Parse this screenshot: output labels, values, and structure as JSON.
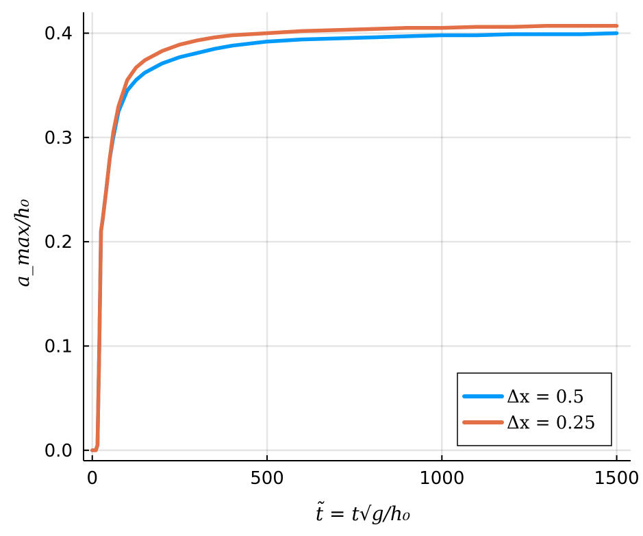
{
  "chart_data": {
    "type": "line",
    "xlabel": "t̃ = t√g/h₀",
    "ylabel": "a_max/h₀",
    "xlim": [
      -25,
      1540
    ],
    "ylim": [
      -0.01,
      0.42
    ],
    "x_ticks": [
      "0",
      "500",
      "1000",
      "1500"
    ],
    "x_tick_values": [
      0,
      500,
      1000,
      1500
    ],
    "y_ticks": [
      "0.0",
      "0.1",
      "0.2",
      "0.3",
      "0.4"
    ],
    "y_tick_values": [
      0.0,
      0.1,
      0.2,
      0.3,
      0.4
    ],
    "grid": true,
    "legend_position": "bottom-right",
    "series": [
      {
        "name": "Δx = 0.5",
        "color": "#009AFA",
        "x": [
          0,
          10,
          15,
          20,
          25,
          30,
          40,
          50,
          60,
          75,
          100,
          125,
          150,
          200,
          250,
          300,
          350,
          400,
          450,
          500,
          600,
          700,
          800,
          900,
          1000,
          1100,
          1200,
          1300,
          1400,
          1500
        ],
        "y": [
          0.0,
          0.0,
          0.005,
          0.1,
          0.21,
          0.222,
          0.25,
          0.28,
          0.3,
          0.325,
          0.345,
          0.355,
          0.362,
          0.371,
          0.377,
          0.381,
          0.385,
          0.388,
          0.39,
          0.392,
          0.394,
          0.395,
          0.396,
          0.397,
          0.398,
          0.398,
          0.399,
          0.399,
          0.399,
          0.4
        ]
      },
      {
        "name": "Δx = 0.25",
        "color": "#E26F46",
        "x": [
          0,
          10,
          15,
          20,
          25,
          30,
          40,
          50,
          60,
          75,
          100,
          125,
          150,
          200,
          250,
          300,
          350,
          400,
          450,
          500,
          600,
          700,
          800,
          900,
          1000,
          1100,
          1200,
          1300,
          1400,
          1500
        ],
        "y": [
          0.0,
          0.0,
          0.005,
          0.1,
          0.21,
          0.222,
          0.25,
          0.28,
          0.305,
          0.33,
          0.355,
          0.367,
          0.374,
          0.383,
          0.389,
          0.393,
          0.396,
          0.398,
          0.399,
          0.4,
          0.402,
          0.403,
          0.404,
          0.405,
          0.405,
          0.406,
          0.406,
          0.407,
          0.407,
          0.407
        ]
      }
    ]
  }
}
